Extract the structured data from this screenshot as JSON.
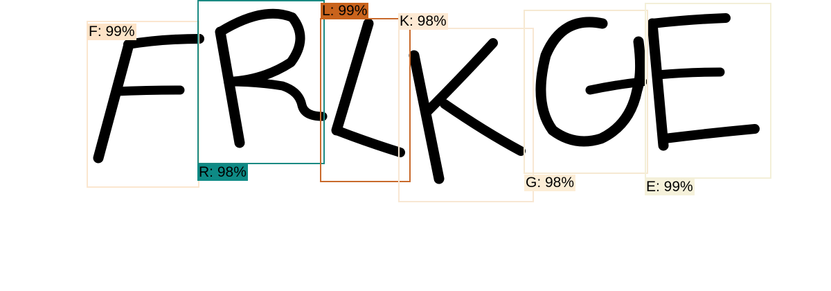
{
  "detections": [
    {
      "char": "F",
      "label": "F: 99%",
      "box_color": "#fbe6cf",
      "tag_color": "#fde3c7"
    },
    {
      "char": "R",
      "label": "R: 98%",
      "box_color": "#1a8a83",
      "tag_color": "#0e8a85"
    },
    {
      "char": "L",
      "label": "L: 99%",
      "box_color": "#c96a2c",
      "tag_color": "#c9631c"
    },
    {
      "char": "K",
      "label": "K: 98%",
      "box_color": "#f8e7d3",
      "tag_color": "#fde9d3"
    },
    {
      "char": "G",
      "label": "G: 98%",
      "box_color": "#f6e9d2",
      "tag_color": "#fcedd6"
    },
    {
      "char": "E",
      "label": "E: 99%",
      "box_color": "#f3efd8",
      "tag_color": "#f5f1da"
    }
  ]
}
